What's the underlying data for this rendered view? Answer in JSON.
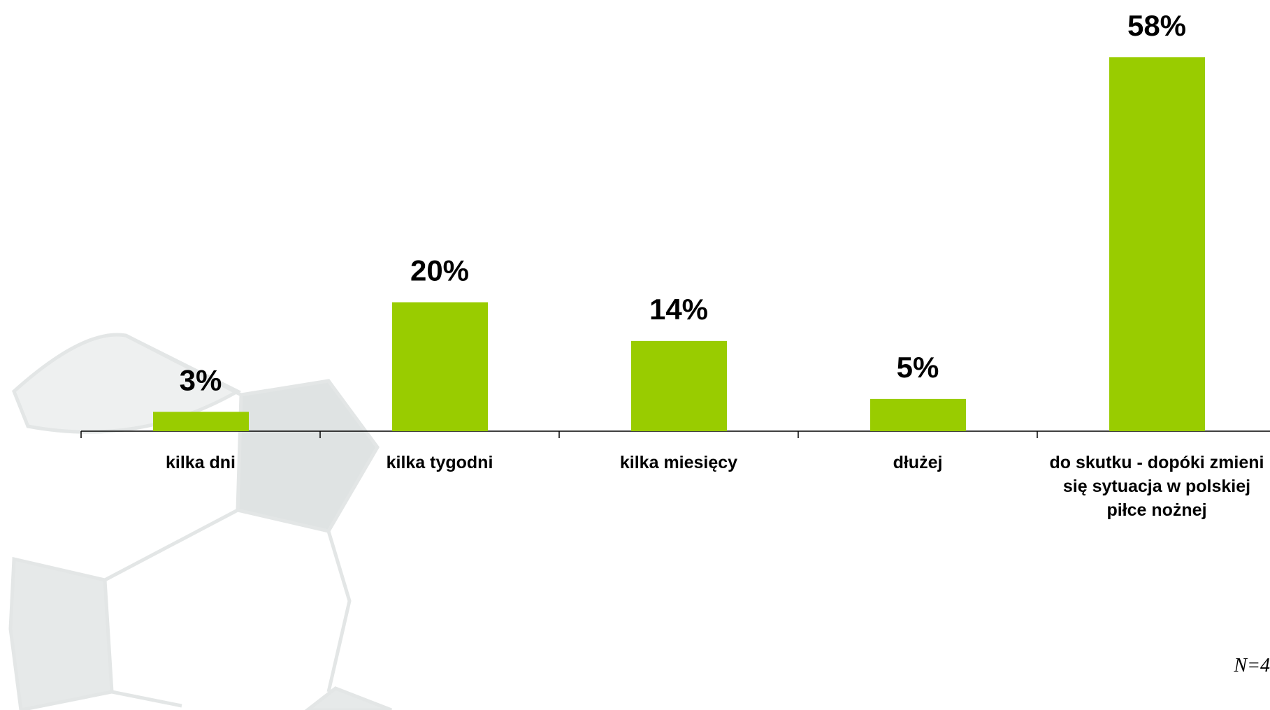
{
  "chart_data": {
    "type": "bar",
    "categories": [
      "kilka dni",
      "kilka tygodni",
      "kilka miesięcy",
      "dłużej",
      "do skutku - dopóki zmieni się sytuacja w polskiej piłce nożnej"
    ],
    "values": [
      3,
      20,
      14,
      5,
      58
    ],
    "value_labels": [
      "3%",
      "20%",
      "14%",
      "5%",
      "58%"
    ],
    "color": "#99cc00",
    "note": "N=4"
  }
}
